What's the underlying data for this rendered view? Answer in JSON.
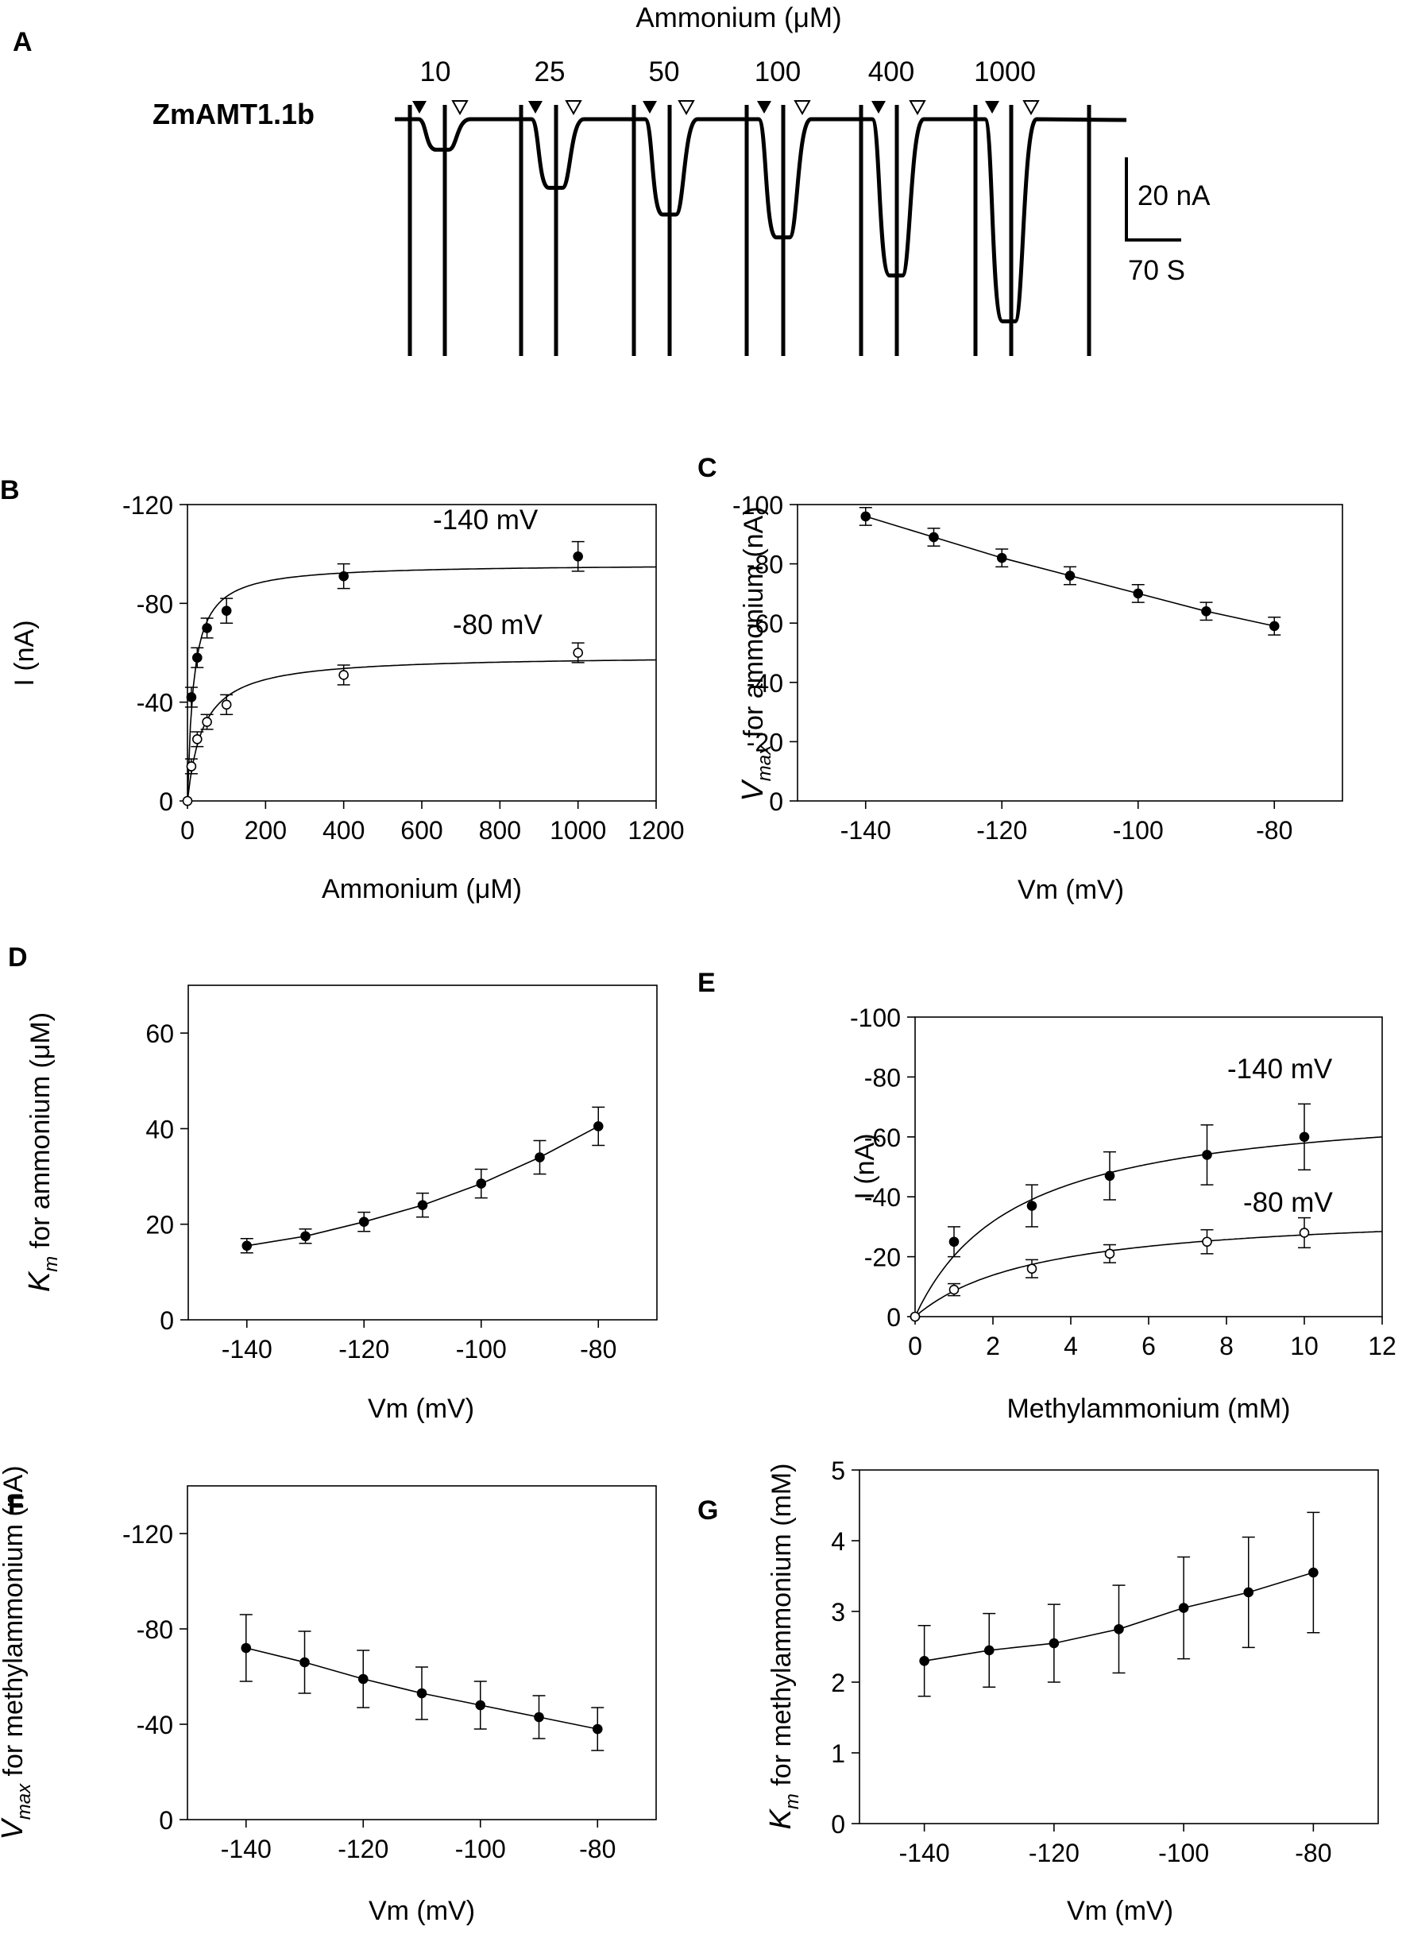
{
  "figure": {
    "panel_a": {
      "letter": "A",
      "title": "Ammonium (μM)",
      "trace_label": "ZmAMT1.1b",
      "concentrations": [
        "10",
        "25",
        "50",
        "100",
        "400",
        "1000"
      ],
      "step_depths_nA": [
        8,
        18,
        25,
        31,
        41,
        53
      ],
      "scalebar_current": "20 nA",
      "scalebar_time": "70 S"
    }
  },
  "chart_data": [
    {
      "panel": "B",
      "type": "scatter",
      "fit": "michaelis-menten",
      "title": "",
      "xlabel": "Ammonium (μM)",
      "ylabel": "I (nA)",
      "xlim": [
        0,
        1200
      ],
      "ylim": [
        0,
        -120
      ],
      "xticks": [
        "0",
        "200",
        "400",
        "600",
        "800",
        "1000",
        "1200"
      ],
      "yticks": [
        "0",
        "-40",
        "-80",
        "-120"
      ],
      "series": [
        {
          "name": "-140 mV",
          "marker": "filled",
          "x": [
            10,
            25,
            50,
            100,
            400,
            1000
          ],
          "y": [
            -42,
            -58,
            -70,
            -77,
            -91,
            -99
          ],
          "err": [
            4,
            4,
            4,
            5,
            5,
            6
          ],
          "fit_vmax": -96,
          "fit_km": 16
        },
        {
          "name": "-80 mV",
          "marker": "open",
          "x": [
            0,
            10,
            25,
            50,
            100,
            400,
            1000
          ],
          "y": [
            0,
            -14,
            -25,
            -32,
            -39,
            -51,
            -60
          ],
          "err": [
            0,
            3,
            3,
            3,
            4,
            4,
            4
          ],
          "fit_vmax": -59,
          "fit_km": 40
        }
      ]
    },
    {
      "panel": "C",
      "type": "line",
      "title": "",
      "xlabel": "Vm (mV)",
      "ylabel": "Vₘₐₓ for ammonium (nA)",
      "ylabel_parts": [
        "V",
        "max",
        " for ammonium (nA)"
      ],
      "xlim": [
        -150,
        -70
      ],
      "ylim": [
        0,
        -100
      ],
      "xticks": [
        "-140",
        "-120",
        "-100",
        "-80"
      ],
      "yticks": [
        "0",
        "-20",
        "-40",
        "-60",
        "-80",
        "-100"
      ],
      "series": [
        {
          "name": "Vmax",
          "marker": "filled",
          "x": [
            -140,
            -130,
            -120,
            -110,
            -100,
            -90,
            -80
          ],
          "y": [
            -96,
            -89,
            -82,
            -76,
            -70,
            -64,
            -59
          ],
          "err": [
            3,
            3,
            3,
            3,
            3,
            3,
            3
          ]
        }
      ]
    },
    {
      "panel": "D",
      "type": "line",
      "title": "",
      "xlabel": "Vm (mV)",
      "ylabel": "Kₘ for ammonium (μM)",
      "ylabel_parts": [
        "K",
        "m",
        " for ammonium (μM)"
      ],
      "xlim": [
        -150,
        -70
      ],
      "ylim": [
        0,
        70
      ],
      "xticks": [
        "-140",
        "-120",
        "-100",
        "-80"
      ],
      "yticks": [
        "0",
        "20",
        "40",
        "60"
      ],
      "series": [
        {
          "name": "Km",
          "marker": "filled",
          "x": [
            -140,
            -130,
            -120,
            -110,
            -100,
            -90,
            -80
          ],
          "y": [
            15.5,
            17.5,
            20.5,
            24,
            28.5,
            34,
            40.5
          ],
          "err": [
            1.5,
            1.5,
            2,
            2.5,
            3,
            3.5,
            4
          ]
        }
      ]
    },
    {
      "panel": "E",
      "type": "scatter",
      "fit": "michaelis-menten",
      "title": "",
      "xlabel": "Methylammonium (mM)",
      "ylabel": "I (nA)",
      "xlim": [
        0,
        12
      ],
      "ylim": [
        0,
        -100
      ],
      "xticks": [
        "0",
        "2",
        "4",
        "6",
        "8",
        "10",
        "12"
      ],
      "yticks": [
        "0",
        "-20",
        "-40",
        "-60",
        "-80",
        "-100"
      ],
      "series": [
        {
          "name": "-140 mV",
          "marker": "filled",
          "x": [
            0,
            1,
            3,
            5,
            7.5,
            10
          ],
          "y": [
            0,
            -25,
            -37,
            -47,
            -54,
            -60
          ],
          "err": [
            0,
            5,
            7,
            8,
            10,
            11
          ],
          "fit_vmax": -73,
          "fit_km": 2.6
        },
        {
          "name": "-80 mV",
          "marker": "open",
          "x": [
            0,
            1,
            3,
            5,
            7.5,
            10
          ],
          "y": [
            0,
            -9,
            -16,
            -21,
            -25,
            -28
          ],
          "err": [
            0,
            2,
            3,
            3,
            4,
            5
          ],
          "fit_vmax": -36,
          "fit_km": 3.2
        }
      ]
    },
    {
      "panel": "F",
      "type": "line",
      "title": "",
      "xlabel": "Vm (mV)",
      "ylabel": "Vₘₐₓ for methylammonium (nA)",
      "ylabel_parts": [
        "V",
        "max",
        " for methylammonium (nA)"
      ],
      "xlim": [
        -150,
        -70
      ],
      "ylim": [
        0,
        -140
      ],
      "xticks": [
        "-140",
        "-120",
        "-100",
        "-80"
      ],
      "yticks": [
        "0",
        "-40",
        "-80",
        "-120"
      ],
      "series": [
        {
          "name": "Vmax",
          "marker": "filled",
          "x": [
            -140,
            -130,
            -120,
            -110,
            -100,
            -90,
            -80
          ],
          "y": [
            -72,
            -66,
            -59,
            -53,
            -48,
            -43,
            -38
          ],
          "err": [
            14,
            13,
            12,
            11,
            10,
            9,
            9
          ]
        }
      ]
    },
    {
      "panel": "G",
      "type": "line",
      "title": "",
      "xlabel": "Vm (mV)",
      "ylabel": "Kₘ for methylammonium (mM)",
      "ylabel_parts": [
        "K",
        "m",
        " for methylammonium (mM)"
      ],
      "xlim": [
        -150,
        -70
      ],
      "ylim": [
        0,
        5
      ],
      "xticks": [
        "-140",
        "-120",
        "-100",
        "-80"
      ],
      "yticks": [
        "0",
        "1",
        "2",
        "3",
        "4",
        "5"
      ],
      "series": [
        {
          "name": "Km",
          "marker": "filled",
          "x": [
            -140,
            -130,
            -120,
            -110,
            -100,
            -90,
            -80
          ],
          "y": [
            2.3,
            2.45,
            2.55,
            2.75,
            3.05,
            3.27,
            3.55
          ],
          "err": [
            0.5,
            0.52,
            0.55,
            0.62,
            0.72,
            0.78,
            0.85
          ]
        }
      ]
    }
  ]
}
